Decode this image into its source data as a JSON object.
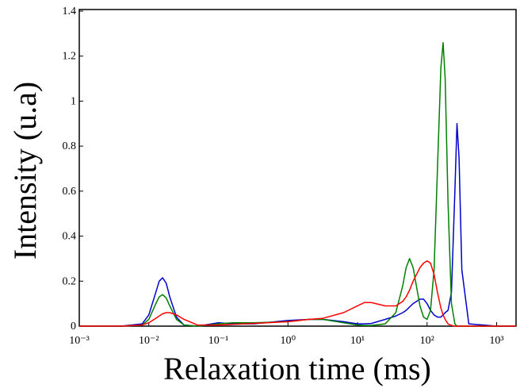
{
  "chart_data": {
    "type": "line",
    "x_label": "Relaxation time (ms)",
    "y_label": "Intensity (u.a)",
    "x_log": true,
    "xlim": [
      0.001,
      1900
    ],
    "xticks": [
      {
        "value": 0.001,
        "label": "10⁻³"
      },
      {
        "value": 0.01,
        "label": "10⁻²"
      },
      {
        "value": 0.1,
        "label": "10⁻¹"
      },
      {
        "value": 1,
        "label": "10⁰"
      },
      {
        "value": 10,
        "label": "10¹"
      },
      {
        "value": 100,
        "label": "10²"
      },
      {
        "value": 1000,
        "label": "10³"
      }
    ],
    "ylim": [
      0,
      1.4
    ],
    "yticks": [
      0,
      0.2,
      0.4,
      0.6,
      0.8,
      1,
      1.2,
      1.4
    ],
    "x": [
      0.001,
      0.004,
      0.008,
      0.01,
      0.0126,
      0.0141,
      0.0158,
      0.0178,
      0.02,
      0.025,
      0.032,
      0.05,
      0.1,
      0.16,
      0.32,
      1,
      2,
      3.2,
      6.3,
      10,
      12.6,
      15.8,
      25,
      35.5,
      44.7,
      50,
      56,
      63,
      79,
      89,
      100,
      112,
      126,
      141,
      158,
      170,
      182,
      200,
      224,
      251,
      269,
      288,
      316,
      398,
      1000,
      1900
    ],
    "series": [
      {
        "color": "#0000cc",
        "values": [
          0,
          0,
          0.01,
          0.05,
          0.15,
          0.2,
          0.215,
          0.19,
          0.13,
          0.04,
          0.005,
          0,
          0.015,
          0.01,
          0.01,
          0.025,
          0.03,
          0.03,
          0.02,
          0.01,
          0.01,
          0.012,
          0.03,
          0.045,
          0.06,
          0.07,
          0.085,
          0.1,
          0.12,
          0.12,
          0.1,
          0.07,
          0.05,
          0.04,
          0.04,
          0.05,
          0.06,
          0.07,
          0.15,
          0.6,
          0.9,
          0.75,
          0.25,
          0.01,
          0,
          0
        ]
      },
      {
        "color": "#008000",
        "values": [
          0,
          0,
          0.005,
          0.03,
          0.1,
          0.13,
          0.14,
          0.125,
          0.09,
          0.03,
          0.005,
          0,
          0.01,
          0.015,
          0.015,
          0.02,
          0.03,
          0.03,
          0.015,
          0.005,
          0.003,
          0.003,
          0.01,
          0.06,
          0.18,
          0.26,
          0.3,
          0.26,
          0.09,
          0.04,
          0.03,
          0.07,
          0.25,
          0.7,
          1.15,
          1.26,
          1.1,
          0.55,
          0.1,
          0.01,
          0,
          0,
          0,
          0,
          0,
          0
        ]
      },
      {
        "color": "#ff0000",
        "values": [
          0,
          0,
          0.005,
          0.015,
          0.035,
          0.045,
          0.055,
          0.06,
          0.06,
          0.05,
          0.03,
          0.005,
          0.005,
          0.008,
          0.012,
          0.02,
          0.03,
          0.035,
          0.06,
          0.09,
          0.105,
          0.105,
          0.09,
          0.09,
          0.11,
          0.13,
          0.16,
          0.2,
          0.26,
          0.28,
          0.29,
          0.28,
          0.23,
          0.15,
          0.08,
          0.05,
          0.03,
          0.01,
          0.003,
          0,
          0,
          0,
          0,
          0,
          0,
          0
        ]
      }
    ]
  }
}
